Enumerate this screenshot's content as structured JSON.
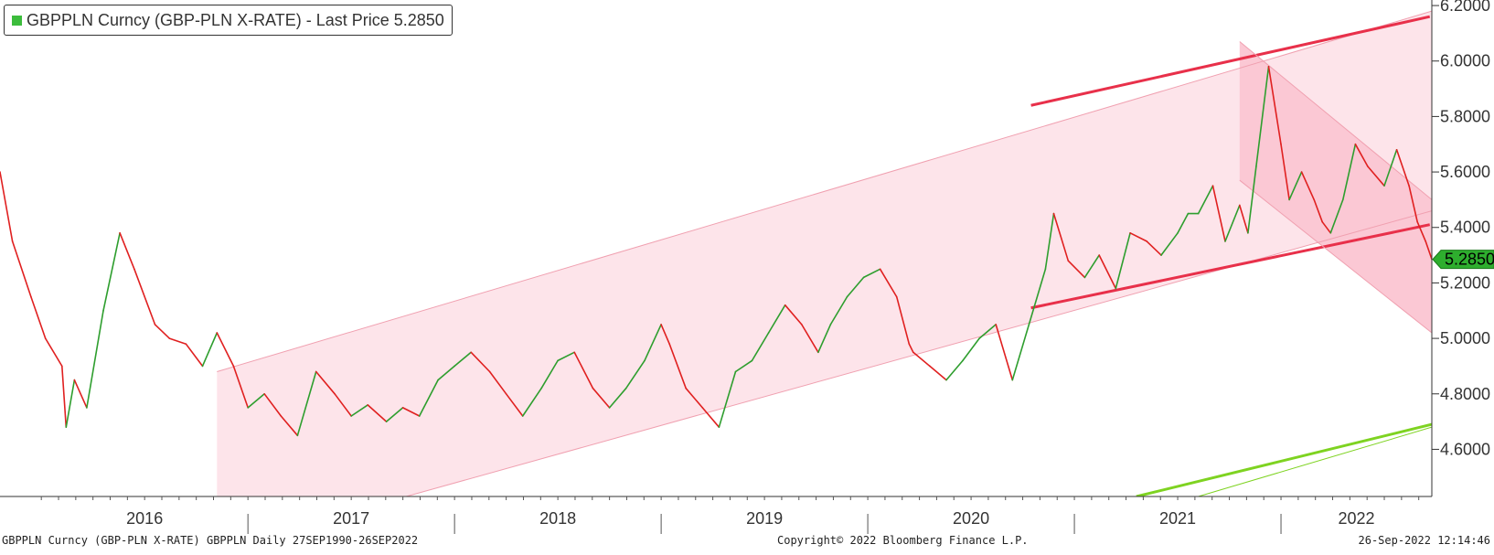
{
  "legend": {
    "label": "GBPPLN Curncy (GBP-PLN X-RATE) - Last Price 5.2850",
    "color": "#3cbc3c"
  },
  "footer": {
    "left": "GBPPLN Curncy (GBP-PLN X-RATE) GBPPLN  Daily 27SEP1990-26SEP2022",
    "center": "Copyright© 2022 Bloomberg Finance L.P.",
    "right": "26-Sep-2022 12:14:46"
  },
  "chart_data": {
    "type": "line",
    "title": "",
    "xlabel": "",
    "ylabel": "",
    "x_categories": [
      "2016",
      "2017",
      "2018",
      "2019",
      "2020",
      "2021",
      "2022"
    ],
    "y_ticks": [
      "4.6000",
      "4.8000",
      "5.0000",
      "5.2000",
      "5.4000",
      "5.6000",
      "5.8000",
      "6.0000",
      "6.2000"
    ],
    "ylim": [
      4.43,
      6.22
    ],
    "xlim": [
      2015.8,
      2022.73
    ],
    "last_price": 5.285,
    "last_price_label": "5.2850",
    "series": [
      {
        "x": [
          2015.8,
          2015.86,
          2015.95,
          2016.02,
          2016.1,
          2016.12,
          2016.16,
          2016.22,
          2016.3,
          2016.38,
          2016.45,
          2016.55,
          2016.62,
          2016.7,
          2016.78,
          2016.85,
          2016.93,
          2017.0,
          2017.08,
          2017.16,
          2017.24,
          2017.33,
          2017.42,
          2017.5,
          2017.58,
          2017.67,
          2017.75,
          2017.83,
          2017.92,
          2018.0,
          2018.08,
          2018.17,
          2018.25,
          2018.33,
          2018.42,
          2018.5,
          2018.58,
          2018.67,
          2018.75,
          2018.83,
          2018.92,
          2019.0,
          2019.04,
          2019.12,
          2019.2,
          2019.28,
          2019.36,
          2019.44,
          2019.52,
          2019.6,
          2019.68,
          2019.76,
          2019.82,
          2019.9,
          2019.98,
          2020.06,
          2020.14,
          2020.2,
          2020.22,
          2020.3,
          2020.38,
          2020.46,
          2020.54,
          2020.62,
          2020.7,
          2020.78,
          2020.86,
          2020.9,
          2020.97,
          2021.05,
          2021.12,
          2021.2,
          2021.27,
          2021.35,
          2021.42,
          2021.5,
          2021.55,
          2021.6,
          2021.67,
          2021.73,
          2021.8,
          2021.84,
          2021.88,
          2021.94,
          2022.0,
          2022.04,
          2022.1,
          2022.16,
          2022.2,
          2022.24,
          2022.3,
          2022.36,
          2022.42,
          2022.5,
          2022.56,
          2022.62,
          2022.66,
          2022.7,
          2022.73
        ],
        "y": [
          5.6,
          5.35,
          5.15,
          5.0,
          4.9,
          4.68,
          4.85,
          4.75,
          5.1,
          5.38,
          5.25,
          5.05,
          5.0,
          4.98,
          4.9,
          5.02,
          4.9,
          4.75,
          4.8,
          4.72,
          4.65,
          4.88,
          4.8,
          4.72,
          4.76,
          4.7,
          4.75,
          4.72,
          4.85,
          4.9,
          4.95,
          4.88,
          4.8,
          4.72,
          4.82,
          4.92,
          4.95,
          4.82,
          4.75,
          4.82,
          4.92,
          5.05,
          4.98,
          4.82,
          4.75,
          4.68,
          4.88,
          4.92,
          5.02,
          5.12,
          5.05,
          4.95,
          5.05,
          5.15,
          5.22,
          5.25,
          5.15,
          4.98,
          4.95,
          4.9,
          4.85,
          4.92,
          5.0,
          5.05,
          4.85,
          5.05,
          5.25,
          5.45,
          5.28,
          5.22,
          5.3,
          5.18,
          5.38,
          5.35,
          5.3,
          5.38,
          5.45,
          5.45,
          5.55,
          5.35,
          5.48,
          5.38,
          5.62,
          5.98,
          5.7,
          5.5,
          5.6,
          5.5,
          5.42,
          5.38,
          5.5,
          5.7,
          5.62,
          5.55,
          5.68,
          5.55,
          5.42,
          5.35,
          5.285
        ],
        "color_up": "#2e9e2e",
        "color_down": "#e02020"
      }
    ],
    "trend_lines": [
      {
        "x": [
          2016.85,
          2022.73
        ],
        "y": [
          4.88,
          6.18
        ],
        "color": "#f0a0b0",
        "width": 1
      },
      {
        "x": [
          2016.85,
          2022.73
        ],
        "y": [
          4.24,
          5.46
        ],
        "color": "#f0a0b0",
        "width": 1
      },
      {
        "x": [
          2020.79,
          2022.72
        ],
        "y": [
          5.84,
          6.16
        ],
        "color": "#e8304a",
        "width": 3
      },
      {
        "x": [
          2020.79,
          2022.72
        ],
        "y": [
          5.11,
          5.41
        ],
        "color": "#e8304a",
        "width": 3
      },
      {
        "x": [
          2021.8,
          2022.73
        ],
        "y": [
          6.07,
          5.5
        ],
        "color": "#f0a0b0",
        "width": 1
      },
      {
        "x": [
          2021.8,
          2022.73
        ],
        "y": [
          5.57,
          5.02
        ],
        "color": "#f0a0b0",
        "width": 1
      },
      {
        "x": [
          2021.3,
          2022.73
        ],
        "y": [
          4.43,
          4.69
        ],
        "color": "#7ed321",
        "width": 3
      },
      {
        "x": [
          2021.6,
          2022.73
        ],
        "y": [
          4.43,
          4.68
        ],
        "color": "#7ed321",
        "width": 1
      }
    ],
    "channels": [
      {
        "x": [
          2016.85,
          2022.73,
          2022.73,
          2016.85
        ],
        "y": [
          4.88,
          6.18,
          5.46,
          4.24
        ],
        "color": "#fde4ea"
      },
      {
        "x": [
          2021.8,
          2022.73,
          2022.73,
          2021.8
        ],
        "y": [
          6.07,
          5.5,
          5.02,
          5.57
        ],
        "color": "#fbc8d4"
      }
    ]
  }
}
